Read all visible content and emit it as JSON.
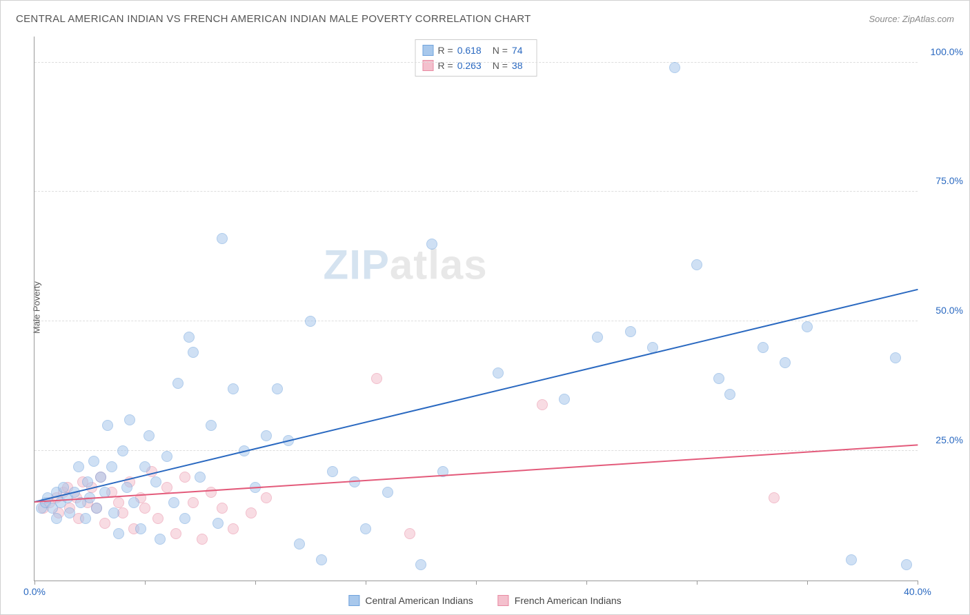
{
  "title": "CENTRAL AMERICAN INDIAN VS FRENCH AMERICAN INDIAN MALE POVERTY CORRELATION CHART",
  "source": "Source: ZipAtlas.com",
  "ylabel": "Male Poverty",
  "watermark": {
    "prefix": "ZIP",
    "suffix": "atlas"
  },
  "chart": {
    "type": "scatter",
    "xlim": [
      0,
      40
    ],
    "ylim": [
      0,
      105
    ],
    "x_ticks": [
      0,
      5,
      10,
      15,
      20,
      25,
      30,
      35,
      40
    ],
    "x_tick_labels": {
      "0": "0.0%",
      "40": "40.0%"
    },
    "y_ticks": [
      25,
      50,
      75,
      100
    ],
    "y_tick_labels": [
      "25.0%",
      "50.0%",
      "75.0%",
      "100.0%"
    ],
    "x_label_color": "#2968c0",
    "y_label_color": "#2968c0",
    "grid_color": "#dddddd",
    "marker_radius": 8,
    "marker_opacity": 0.55,
    "series": [
      {
        "name": "Central American Indians",
        "fill": "#a8c8ec",
        "stroke": "#6fa3dd",
        "r": 0.618,
        "n": 74,
        "trend": {
          "x1": 0,
          "y1": 15,
          "x2": 40,
          "y2": 56,
          "color": "#2968c0",
          "width": 2
        },
        "points": [
          [
            0.3,
            14
          ],
          [
            0.5,
            15
          ],
          [
            0.6,
            16
          ],
          [
            0.8,
            14
          ],
          [
            1.0,
            17
          ],
          [
            1.0,
            12
          ],
          [
            1.2,
            15
          ],
          [
            1.3,
            18
          ],
          [
            1.5,
            16
          ],
          [
            1.6,
            13
          ],
          [
            1.8,
            17
          ],
          [
            2.0,
            22
          ],
          [
            2.1,
            15
          ],
          [
            2.3,
            12
          ],
          [
            2.4,
            19
          ],
          [
            2.5,
            16
          ],
          [
            2.7,
            23
          ],
          [
            2.8,
            14
          ],
          [
            3.0,
            20
          ],
          [
            3.2,
            17
          ],
          [
            3.3,
            30
          ],
          [
            3.5,
            22
          ],
          [
            3.6,
            13
          ],
          [
            3.8,
            9
          ],
          [
            4.0,
            25
          ],
          [
            4.2,
            18
          ],
          [
            4.3,
            31
          ],
          [
            4.5,
            15
          ],
          [
            4.8,
            10
          ],
          [
            5.0,
            22
          ],
          [
            5.2,
            28
          ],
          [
            5.5,
            19
          ],
          [
            5.7,
            8
          ],
          [
            6.0,
            24
          ],
          [
            6.3,
            15
          ],
          [
            6.5,
            38
          ],
          [
            6.8,
            12
          ],
          [
            7.0,
            47
          ],
          [
            7.2,
            44
          ],
          [
            7.5,
            20
          ],
          [
            8.0,
            30
          ],
          [
            8.3,
            11
          ],
          [
            8.5,
            66
          ],
          [
            9.0,
            37
          ],
          [
            9.5,
            25
          ],
          [
            10.0,
            18
          ],
          [
            10.5,
            28
          ],
          [
            11.0,
            37
          ],
          [
            11.5,
            27
          ],
          [
            12.0,
            7
          ],
          [
            12.5,
            50
          ],
          [
            13.0,
            4
          ],
          [
            13.5,
            21
          ],
          [
            14.5,
            19
          ],
          [
            15.0,
            10
          ],
          [
            16.0,
            17
          ],
          [
            17.5,
            3
          ],
          [
            18.0,
            65
          ],
          [
            18.5,
            21
          ],
          [
            21.0,
            40
          ],
          [
            24.0,
            35
          ],
          [
            25.5,
            47
          ],
          [
            27.0,
            48
          ],
          [
            28.0,
            45
          ],
          [
            29.0,
            99
          ],
          [
            30.0,
            61
          ],
          [
            31.0,
            39
          ],
          [
            31.5,
            36
          ],
          [
            33.0,
            45
          ],
          [
            34.0,
            42
          ],
          [
            35.0,
            49
          ],
          [
            37.0,
            4
          ],
          [
            39.0,
            43
          ],
          [
            39.5,
            3
          ]
        ]
      },
      {
        "name": "French American Indians",
        "fill": "#f4c0cd",
        "stroke": "#e88aa2",
        "r": 0.263,
        "n": 38,
        "trend": {
          "x1": 0,
          "y1": 15,
          "x2": 40,
          "y2": 26,
          "color": "#e35a7a",
          "width": 2
        },
        "points": [
          [
            0.4,
            14
          ],
          [
            0.7,
            15
          ],
          [
            1.0,
            16
          ],
          [
            1.1,
            13
          ],
          [
            1.3,
            17
          ],
          [
            1.5,
            18
          ],
          [
            1.6,
            14
          ],
          [
            1.9,
            16
          ],
          [
            2.0,
            12
          ],
          [
            2.2,
            19
          ],
          [
            2.4,
            15
          ],
          [
            2.6,
            18
          ],
          [
            2.8,
            14
          ],
          [
            3.0,
            20
          ],
          [
            3.2,
            11
          ],
          [
            3.5,
            17
          ],
          [
            3.8,
            15
          ],
          [
            4.0,
            13
          ],
          [
            4.3,
            19
          ],
          [
            4.5,
            10
          ],
          [
            4.8,
            16
          ],
          [
            5.0,
            14
          ],
          [
            5.3,
            21
          ],
          [
            5.6,
            12
          ],
          [
            6.0,
            18
          ],
          [
            6.4,
            9
          ],
          [
            6.8,
            20
          ],
          [
            7.2,
            15
          ],
          [
            7.6,
            8
          ],
          [
            8.0,
            17
          ],
          [
            8.5,
            14
          ],
          [
            9.0,
            10
          ],
          [
            9.8,
            13
          ],
          [
            10.5,
            16
          ],
          [
            15.5,
            39
          ],
          [
            17.0,
            9
          ],
          [
            23.0,
            34
          ],
          [
            33.5,
            16
          ]
        ]
      }
    ]
  },
  "legend_bottom": [
    {
      "label": "Central American Indians",
      "fill": "#a8c8ec",
      "stroke": "#6fa3dd"
    },
    {
      "label": "French American Indians",
      "fill": "#f4c0cd",
      "stroke": "#e88aa2"
    }
  ]
}
